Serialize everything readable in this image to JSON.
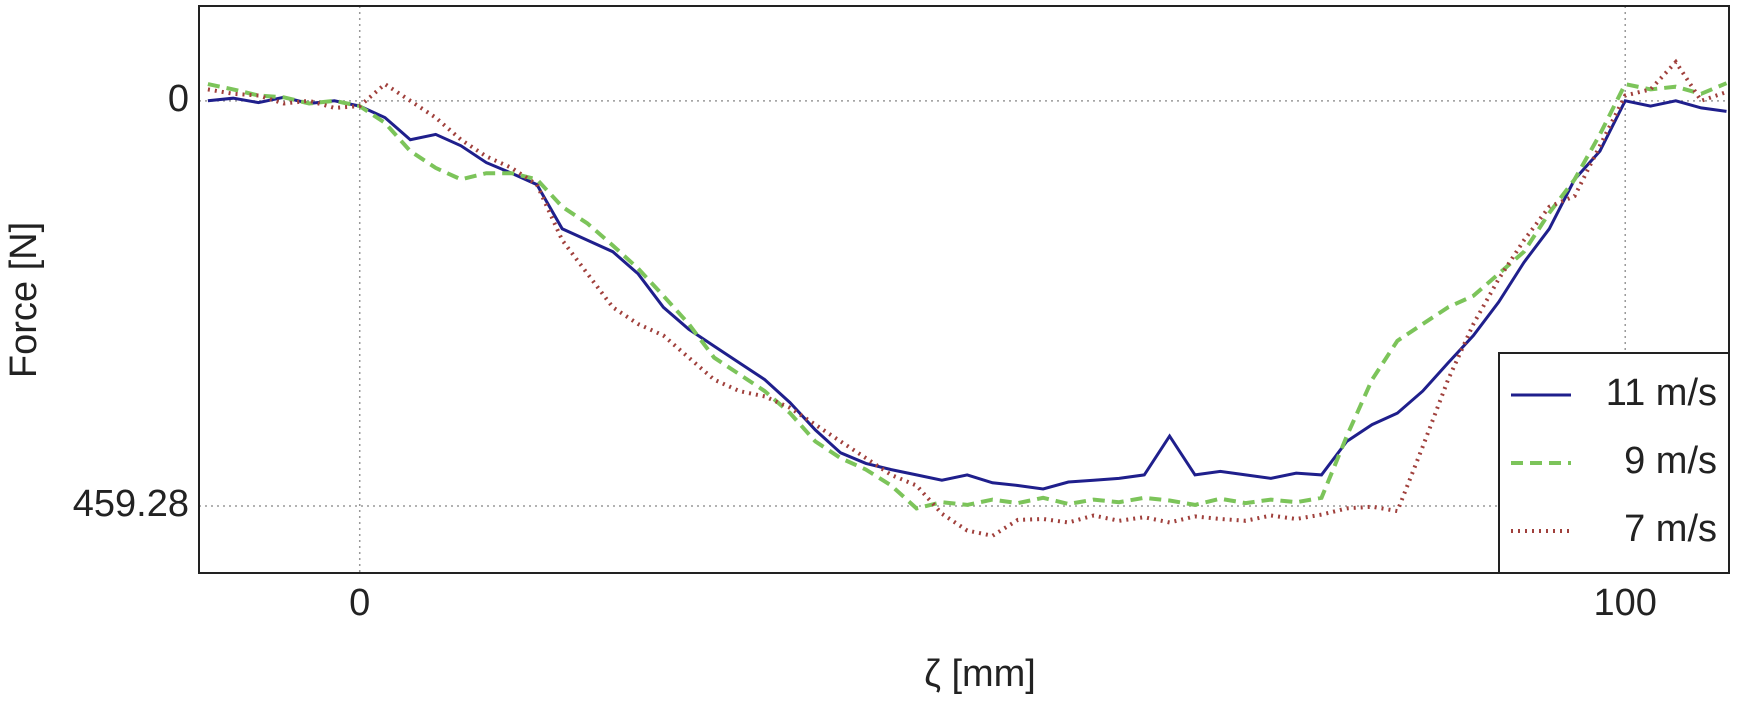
{
  "chart_data": {
    "type": "line",
    "xlabel": "ζ [mm]",
    "ylabel": "Force [N]",
    "x": [
      -12,
      -10,
      -8,
      -6,
      -4,
      -2,
      0,
      2,
      4,
      6,
      8,
      10,
      12,
      14,
      16,
      18,
      20,
      22,
      24,
      26,
      28,
      30,
      32,
      34,
      36,
      38,
      40,
      42,
      44,
      46,
      48,
      50,
      52,
      54,
      56,
      58,
      60,
      62,
      64,
      66,
      68,
      70,
      72,
      74,
      76,
      78,
      80,
      82,
      84,
      86,
      88,
      90,
      92,
      94,
      96,
      98,
      100,
      102,
      104,
      106,
      108
    ],
    "series": [
      {
        "name": "11 m/s",
        "color": "#1f1f8c",
        "style": "solid",
        "values": [
          0,
          -3,
          2,
          -4,
          3,
          0,
          6,
          19,
          44,
          38,
          51,
          70,
          82,
          95,
          145,
          158,
          171,
          196,
          234,
          259,
          278,
          297,
          316,
          342,
          373,
          399,
          411,
          418,
          424,
          430,
          424,
          433,
          436,
          440,
          432,
          430,
          428,
          424,
          380,
          424,
          420,
          424,
          428,
          422,
          424,
          386,
          367,
          354,
          329,
          297,
          266,
          228,
          183,
          145,
          89,
          57,
          0,
          6,
          0,
          8,
          12
        ]
      },
      {
        "name": "9 m/s",
        "color": "#7cc45a",
        "style": "dashed",
        "values": [
          -19,
          -13,
          -6,
          -4,
          3,
          0,
          6,
          25,
          57,
          76,
          89,
          82,
          82,
          89,
          120,
          139,
          164,
          190,
          221,
          253,
          291,
          310,
          329,
          354,
          386,
          405,
          418,
          436,
          462,
          455,
          458,
          452,
          456,
          450,
          457,
          452,
          455,
          450,
          453,
          458,
          451,
          456,
          452,
          455,
          450,
          380,
          316,
          272,
          253,
          234,
          221,
          196,
          171,
          127,
          89,
          38,
          -19,
          -13,
          -16,
          -8,
          -20
        ]
      },
      {
        "name": "7 m/s",
        "color": "#a0403c",
        "style": "dotted",
        "values": [
          -13,
          -8,
          -6,
          3,
          0,
          8,
          6,
          -19,
          0,
          19,
          44,
          63,
          76,
          95,
          158,
          196,
          234,
          253,
          266,
          291,
          316,
          329,
          335,
          348,
          367,
          386,
          405,
          424,
          436,
          468,
          487,
          493,
          475,
          474,
          478,
          470,
          476,
          472,
          478,
          471,
          474,
          476,
          470,
          474,
          469,
          462,
          460,
          465,
          392,
          316,
          253,
          202,
          158,
          120,
          108,
          51,
          -6,
          -13,
          -44,
          0,
          -10
        ]
      }
    ],
    "xlim": [
      -12.7,
      108.2
    ],
    "xticks": [
      0,
      100
    ],
    "ylim": [
      535.2,
      -107.5
    ],
    "yticks": [
      0,
      459.28
    ],
    "grid": true,
    "legend": "lower right"
  }
}
